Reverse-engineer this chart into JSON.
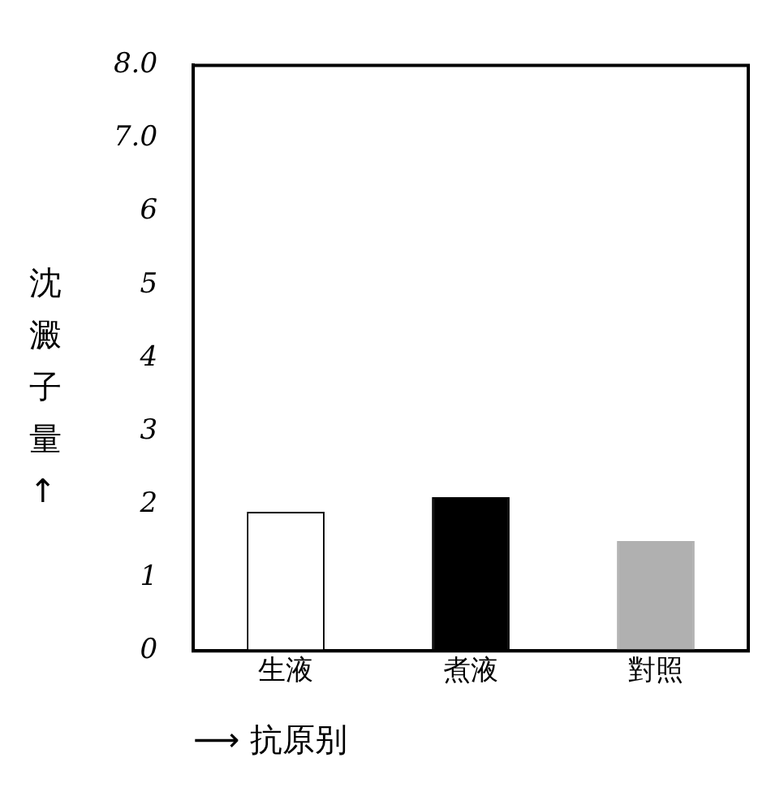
{
  "chart_data": {
    "type": "bar",
    "ylabel": "沈澱子量↑",
    "xlabel": "⟶ 抗原别",
    "categories": [
      "生液",
      "煮液",
      "對照"
    ],
    "values": [
      1.9,
      2.1,
      1.5
    ],
    "colors": [
      "#ffffff",
      "#000000",
      "#b0b0b0"
    ],
    "ylim": [
      0,
      8
    ],
    "yticks": [
      0,
      1,
      2,
      3,
      4,
      5,
      6,
      {
        "value": 7,
        "label": "7.0"
      },
      {
        "value": 8,
        "label": "8.0"
      }
    ],
    "grid": false,
    "legend": false
  }
}
